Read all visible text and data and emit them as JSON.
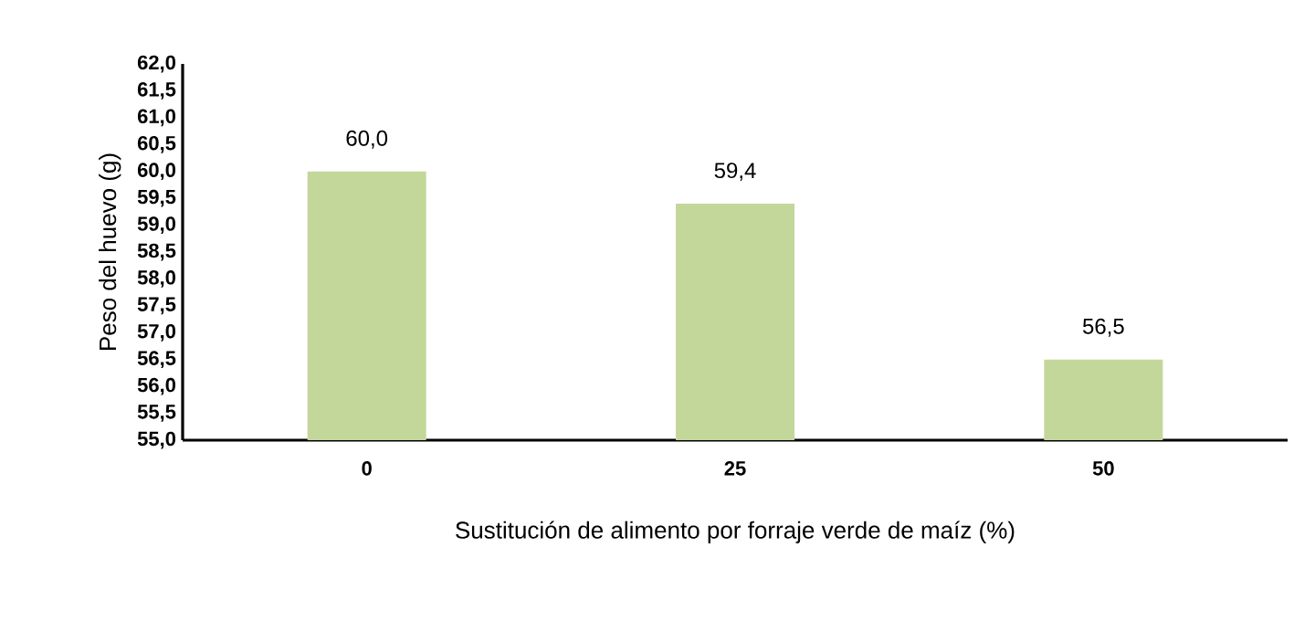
{
  "chart_data": {
    "type": "bar",
    "xlabel": "Sustitución de alimento por forraje verde de maíz (%)",
    "ylabel": "Peso del huevo (g)",
    "categories": [
      "0",
      "25",
      "50"
    ],
    "values": [
      60.0,
      59.4,
      56.5
    ],
    "value_labels": [
      "60,0",
      "59,4",
      "56,5"
    ],
    "color": "#c4d79b",
    "ylim": [
      55,
      62
    ],
    "yticks": [
      {
        "value": 55,
        "label": "55,0"
      },
      {
        "value": 55.5,
        "label": "55,5"
      },
      {
        "value": 56,
        "label": "56,0"
      },
      {
        "value": 56.5,
        "label": "56,5"
      },
      {
        "value": 57,
        "label": "57,0"
      },
      {
        "value": 57.5,
        "label": "57,5"
      },
      {
        "value": 58,
        "label": "58,0"
      },
      {
        "value": 58.5,
        "label": "58,5"
      },
      {
        "value": 59,
        "label": "59,0"
      },
      {
        "value": 59.5,
        "label": "59,5"
      },
      {
        "value": 60,
        "label": "60,0"
      },
      {
        "value": 60.5,
        "label": "60,5"
      },
      {
        "value": 61,
        "label": "61,0"
      },
      {
        "value": 61.5,
        "label": "61,5"
      },
      {
        "value": 62,
        "label": "62,0"
      }
    ]
  }
}
